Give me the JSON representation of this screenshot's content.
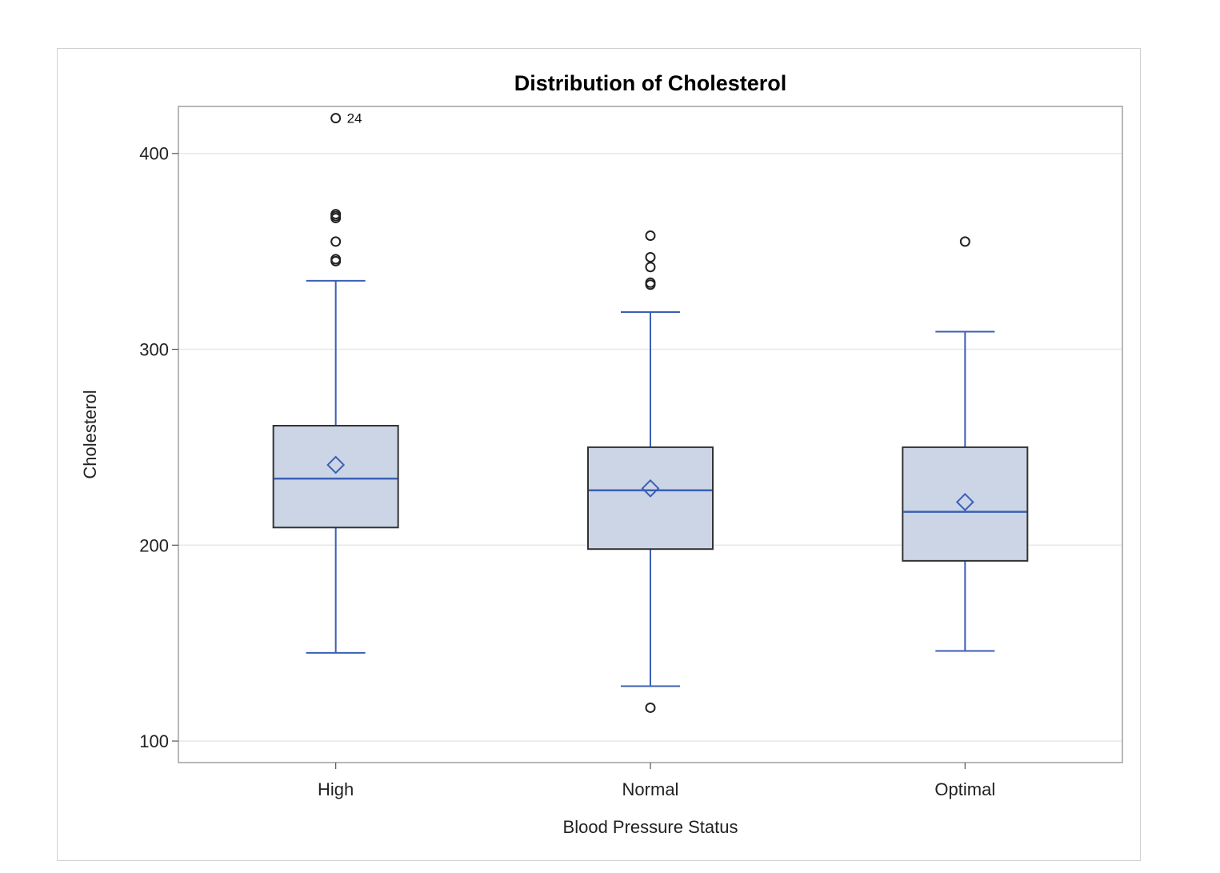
{
  "chart_data": {
    "type": "box",
    "title": "Distribution of Cholesterol",
    "xlabel": "Blood Pressure Status",
    "ylabel": "Cholesterol",
    "ylim": [
      89,
      424
    ],
    "yticks": [
      100,
      200,
      300,
      400
    ],
    "grid": true,
    "colors": {
      "box_fill": "#cbd5e6",
      "box_edge": "#333333",
      "whisker": "#3a5fb5",
      "median": "#3a5fb5",
      "mean_marker": "#3a5fb5",
      "outlier": "#222222",
      "grid": "#e8e8e8",
      "plot_border": "#a0a0a0"
    },
    "categories": [
      "High",
      "Normal",
      "Optimal"
    ],
    "boxes": [
      {
        "category": "High",
        "whisker_low": 145,
        "q1": 209,
        "median": 234,
        "q3": 261,
        "whisker_high": 335,
        "mean": 241,
        "outliers": [
          418,
          369,
          368,
          367,
          355,
          346,
          345
        ],
        "outlier_labels": [
          {
            "value": 418,
            "label": "24"
          }
        ]
      },
      {
        "category": "Normal",
        "whisker_low": 128,
        "q1": 198,
        "median": 228,
        "q3": 250,
        "whisker_high": 319,
        "mean": 229,
        "outliers": [
          117,
          358,
          347,
          342,
          334,
          333
        ],
        "outlier_labels": []
      },
      {
        "category": "Optimal",
        "whisker_low": 146,
        "q1": 192,
        "median": 217,
        "q3": 250,
        "whisker_high": 309,
        "mean": 222,
        "outliers": [
          355
        ],
        "outlier_labels": []
      }
    ]
  }
}
